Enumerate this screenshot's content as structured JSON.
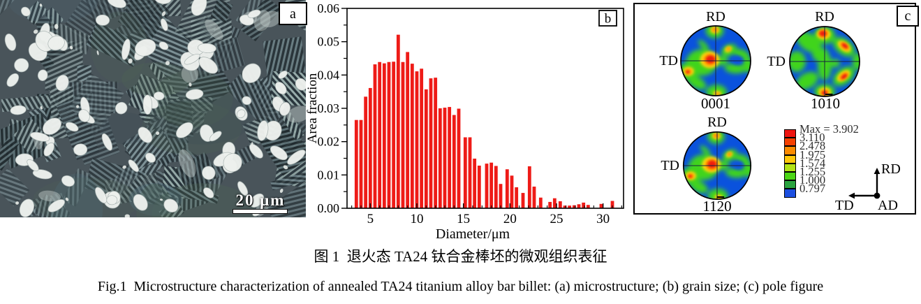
{
  "figure": {
    "caption_zh": "图 1  退火态 TA24 钛合金棒坯的微观组织表征",
    "caption_en": "Fig.1  Microstructure characterization of annealed TA24 titanium alloy bar billet: (a) microstructure; (b) grain size; (c) pole figure"
  },
  "panels": {
    "a_label": "a",
    "b_label": "b",
    "c_label": "c",
    "a_scale_label": "20 μm"
  },
  "chart_data": {
    "type": "bar",
    "title": "",
    "xlabel": "Diameter/μm",
    "ylabel": "Area fraction",
    "xlim": [
      2.5,
      32.2
    ],
    "ylim": [
      0,
      0.06
    ],
    "x_ticks": [
      5,
      10,
      15,
      20,
      25,
      30
    ],
    "y_ticks": [
      0,
      0.01,
      0.02,
      0.03,
      0.04,
      0.05,
      0.06
    ],
    "y_tick_labels": [
      "0.00",
      "0.01",
      "0.02",
      "0.03",
      "0.04",
      "0.05",
      "0.06"
    ],
    "grid": false,
    "bar_color": "#ee1b17",
    "bin_width": 0.5,
    "x": [
      3.5,
      4.0,
      4.5,
      5.0,
      5.5,
      6.0,
      6.5,
      7.0,
      7.5,
      8.0,
      8.5,
      9.0,
      9.5,
      10.0,
      10.5,
      11.0,
      11.5,
      12.0,
      12.5,
      13.0,
      13.5,
      14.0,
      14.5,
      15.2,
      15.7,
      16.2,
      16.7,
      17.5,
      18.0,
      18.5,
      19.0,
      19.7,
      20.2,
      20.7,
      21.4,
      22.1,
      22.6,
      23.3,
      24.3,
      24.8,
      25.4,
      25.9,
      26.4,
      26.9,
      27.4,
      27.9,
      28.4,
      29.8,
      31.0
    ],
    "values": [
      0.0265,
      0.0265,
      0.0335,
      0.0361,
      0.0432,
      0.0439,
      0.0435,
      0.0439,
      0.044,
      0.0521,
      0.0439,
      0.0469,
      0.0434,
      0.0411,
      0.0419,
      0.0357,
      0.039,
      0.0392,
      0.03,
      0.0302,
      0.0304,
      0.028,
      0.0299,
      0.0213,
      0.0213,
      0.0149,
      0.0128,
      0.0134,
      0.0137,
      0.0127,
      0.0073,
      0.0117,
      0.0098,
      0.0063,
      0.0046,
      0.0126,
      0.0065,
      0.0032,
      0.0019,
      0.003,
      0.0021,
      0.0008,
      0.0008,
      0.0009,
      0.0012,
      0.0017,
      0.001,
      0.0013,
      0.0022
    ]
  },
  "panel_c": {
    "poles": [
      {
        "rd": "RD",
        "td": "TD",
        "miller_pre": "0001",
        "miller_bar": "",
        "miller_post": "",
        "pattern": "A"
      },
      {
        "rd": "RD",
        "td": "TD",
        "miller_pre": "10",
        "miller_bar": "1",
        "miller_post": "0",
        "pattern": "B"
      },
      {
        "rd": "RD",
        "td": "TD",
        "miller_pre": "11",
        "miller_bar": "2",
        "miller_post": "0",
        "pattern": "A"
      }
    ],
    "legend": {
      "labels": [
        "Max = 3.902",
        "3.110",
        "2.478",
        "1.975",
        "1.574",
        "1.255",
        "1.000",
        "0.797"
      ],
      "colors": [
        "#ee1410",
        "#f54000",
        "#fb8b00",
        "#ffc80a",
        "#b2e315",
        "#4cd616",
        "#2aa33f",
        "#1c4fe0"
      ]
    },
    "axes_icon": {
      "up": "RD",
      "left": "TD",
      "origin": "AD"
    },
    "pf_colors": {
      "blue": "#0a52dd",
      "green": "#3fd41f",
      "yellow": "#ffd70a",
      "orange": "#ff8c00",
      "red": "#ee1b10"
    }
  }
}
